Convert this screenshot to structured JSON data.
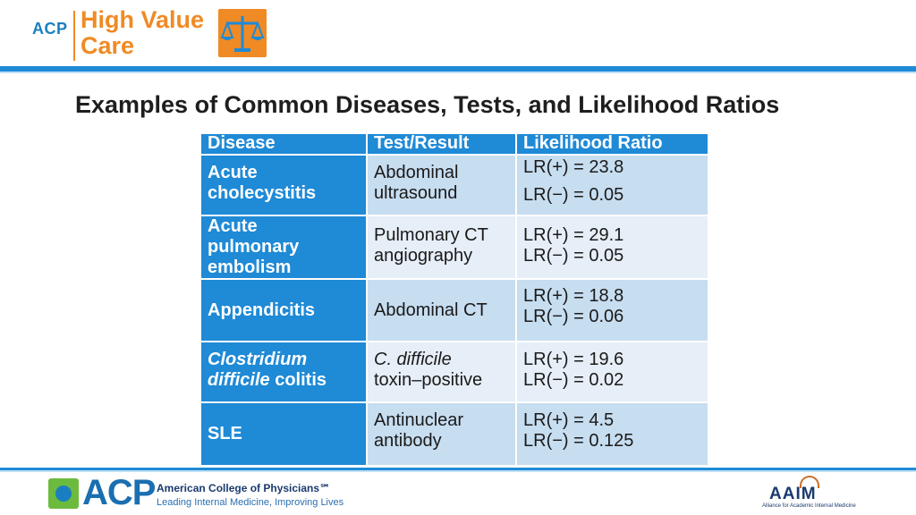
{
  "header": {
    "logo_prefix": "ACP",
    "logo_line1": "High Value",
    "logo_line2": "Care"
  },
  "title": "Examples of Common Diseases, Tests, and Likelihood Ratios",
  "table": {
    "headers": [
      "Disease",
      "Test/Result",
      "Likelihood Ratio"
    ],
    "rows": [
      {
        "disease": [
          "Acute",
          "cholecystitis"
        ],
        "test": [
          "Abdominal",
          "ultrasound"
        ],
        "lr_pos": "LR(+) = 23.8",
        "lr_neg": "LR(−) = 0.05"
      },
      {
        "disease": [
          "Acute",
          "pulmonary",
          "embolism"
        ],
        "test": [
          "Pulmonary CT",
          "angiography"
        ],
        "lr_pos": "LR(+) = 29.1",
        "lr_neg": "LR(−) = 0.05"
      },
      {
        "disease": [
          "Appendicitis"
        ],
        "test": [
          "Abdominal CT"
        ],
        "lr_pos": "LR(+) = 18.8",
        "lr_neg": "LR(−) = 0.06"
      },
      {
        "disease": [
          "Clostridium",
          "difficile",
          "colitis"
        ],
        "test": [
          "C. difficile",
          "toxin–positive"
        ],
        "lr_pos": "LR(+) = 19.6",
        "lr_neg": "LR(−) = 0.02"
      },
      {
        "disease": [
          "SLE"
        ],
        "test": [
          "Antinuclear",
          "antibody"
        ],
        "lr_pos": "LR(+) = 4.5",
        "lr_neg": "LR(−) = 0.125"
      }
    ]
  },
  "footer": {
    "acp_logo": "ACP",
    "acp_name": "American College of Physicians℠",
    "acp_tagline": "Leading Internal Medicine, Improving Lives",
    "aaim_logo": "AAIM",
    "aaim_sub": "Alliance for Academic Internal Medicine"
  },
  "colors": {
    "accent_blue": "#1f8ad6",
    "orange": "#f08a24",
    "row_light": "#c7ddf0",
    "row_lighter": "#e6eef7"
  }
}
